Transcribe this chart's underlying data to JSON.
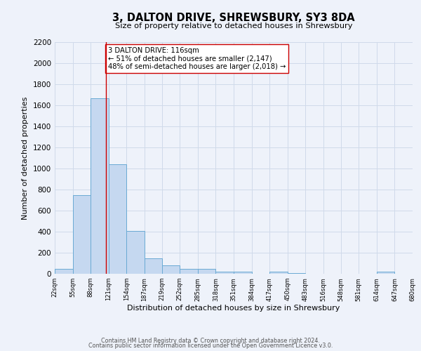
{
  "title": "3, DALTON DRIVE, SHREWSBURY, SY3 8DA",
  "subtitle": "Size of property relative to detached houses in Shrewsbury",
  "xlabel": "Distribution of detached houses by size in Shrewsbury",
  "ylabel": "Number of detached properties",
  "bin_edges": [
    22,
    55,
    88,
    121,
    154,
    187,
    219,
    252,
    285,
    318,
    351,
    384,
    417,
    450,
    483,
    516,
    548,
    581,
    614,
    647,
    680
  ],
  "bar_heights": [
    50,
    745,
    1670,
    1040,
    405,
    148,
    82,
    45,
    45,
    22,
    18,
    0,
    18,
    10,
    0,
    0,
    0,
    0,
    18,
    0
  ],
  "tick_labels": [
    "22sqm",
    "55sqm",
    "88sqm",
    "121sqm",
    "154sqm",
    "187sqm",
    "219sqm",
    "252sqm",
    "285sqm",
    "318sqm",
    "351sqm",
    "384sqm",
    "417sqm",
    "450sqm",
    "483sqm",
    "516sqm",
    "548sqm",
    "581sqm",
    "614sqm",
    "647sqm",
    "680sqm"
  ],
  "bar_color": "#c5d8f0",
  "bar_edge_color": "#6aaad4",
  "grid_color": "#d0daea",
  "property_line_x": 116,
  "property_line_color": "#cc0000",
  "annotation_text": "3 DALTON DRIVE: 116sqm\n← 51% of detached houses are smaller (2,147)\n48% of semi-detached houses are larger (2,018) →",
  "annotation_box_color": "#ffffff",
  "annotation_box_edge": "#cc0000",
  "ylim": [
    0,
    2200
  ],
  "yticks": [
    0,
    200,
    400,
    600,
    800,
    1000,
    1200,
    1400,
    1600,
    1800,
    2000,
    2200
  ],
  "footer1": "Contains HM Land Registry data © Crown copyright and database right 2024.",
  "footer2": "Contains public sector information licensed under the Open Government Licence v3.0.",
  "fig_width": 6.0,
  "fig_height": 5.0,
  "background_color": "#eef2fa"
}
